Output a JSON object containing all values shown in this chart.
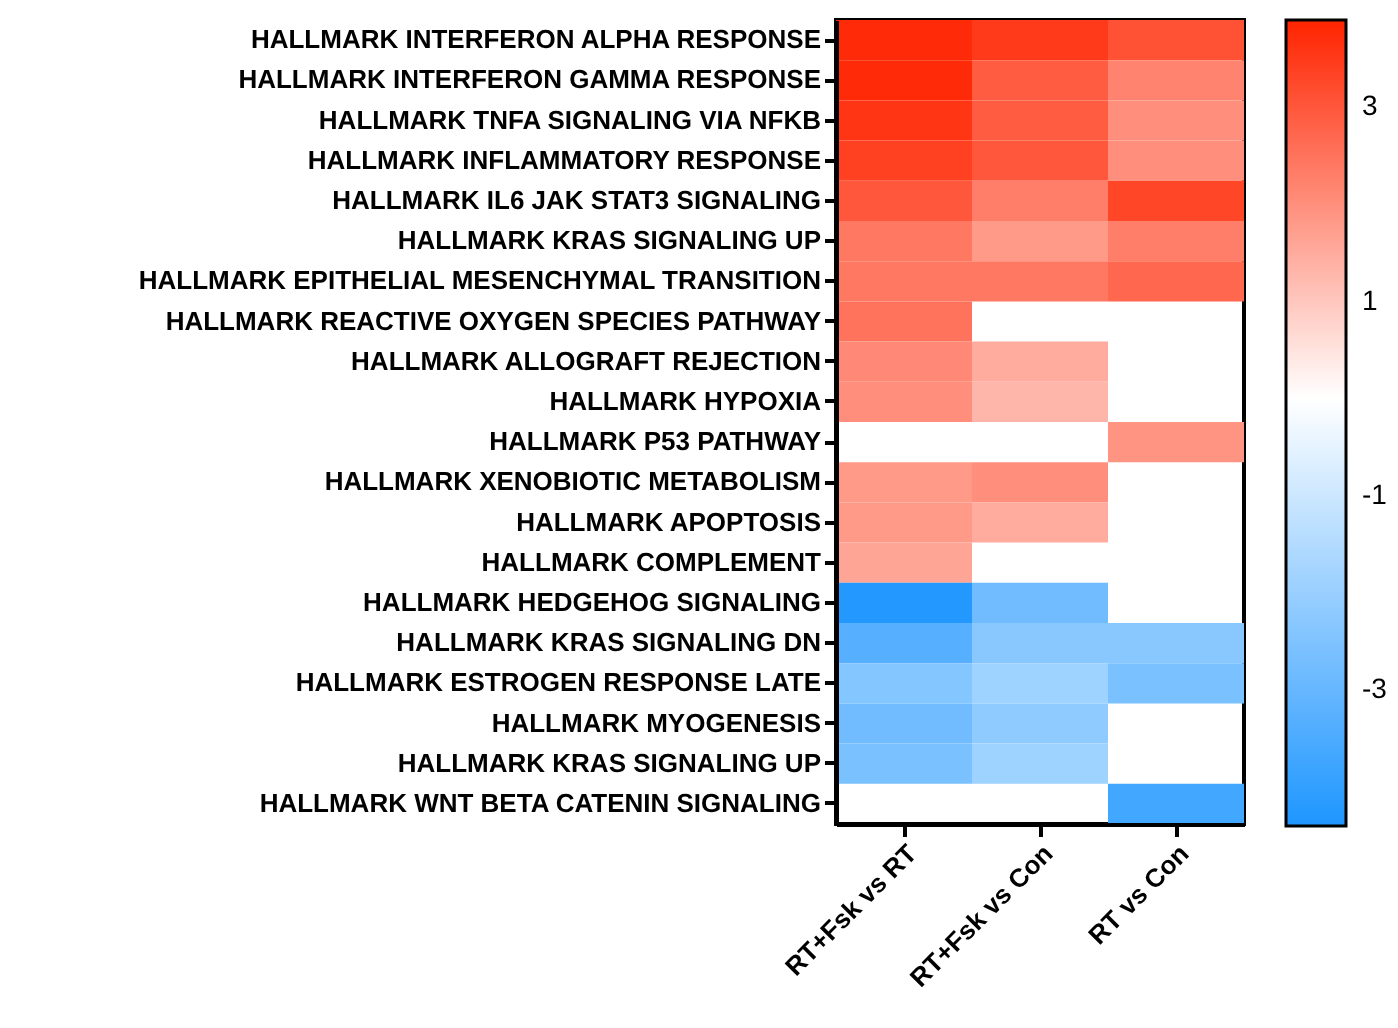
{
  "chart_data": {
    "type": "heatmap",
    "categories": [
      "RT+Fsk vs RT",
      "RT+Fsk vs Con",
      "RT vs Con"
    ],
    "y_categories": [
      "HALLMARK INTERFERON ALPHA RESPONSE",
      "HALLMARK INTERFERON GAMMA RESPONSE",
      "HALLMARK TNFA SIGNALING VIA NFKB",
      "HALLMARK INFLAMMATORY RESPONSE",
      "HALLMARK IL6 JAK STAT3 SIGNALING",
      "HALLMARK KRAS SIGNALING UP",
      "HALLMARK EPITHELIAL MESENCHYMAL TRANSITION",
      "HALLMARK REACTIVE OXYGEN SPECIES PATHWAY",
      "HALLMARK ALLOGRAFT REJECTION",
      "HALLMARK HYPOXIA",
      "HALLMARK P53 PATHWAY",
      "HALLMARK XENOBIOTIC METABOLISM",
      "HALLMARK APOPTOSIS",
      "HALLMARK COMPLEMENT",
      "HALLMARK HEDGEHOG SIGNALING",
      "HALLMARK KRAS SIGNALING DN",
      "HALLMARK ESTROGEN RESPONSE LATE",
      "HALLMARK MYOGENESIS",
      "HALLMARK KRAS SIGNALING UP",
      "HALLMARK WNT BETA CATENIN SIGNALING"
    ],
    "cells": [
      [
        3.8,
        3.5,
        3.1
      ],
      [
        3.8,
        2.9,
        2.2
      ],
      [
        3.6,
        2.9,
        2.0
      ],
      [
        3.4,
        3.0,
        2.0
      ],
      [
        3.0,
        2.3,
        3.3
      ],
      [
        2.4,
        1.8,
        2.3
      ],
      [
        2.4,
        2.4,
        2.7
      ],
      [
        2.5,
        null,
        null
      ],
      [
        2.1,
        1.5,
        null
      ],
      [
        2.0,
        1.3,
        null
      ],
      [
        null,
        null,
        1.9
      ],
      [
        1.8,
        2.0,
        null
      ],
      [
        1.8,
        1.5,
        null
      ],
      [
        1.6,
        null,
        null
      ],
      [
        -4.3,
        -2.8,
        null
      ],
      [
        -3.3,
        -2.3,
        -2.3
      ],
      [
        -2.4,
        -1.9,
        -2.6
      ],
      [
        -2.8,
        -2.2,
        null
      ],
      [
        -2.6,
        -1.9,
        null
      ],
      [
        null,
        null,
        -3.7
      ]
    ],
    "clim": [
      -4.4,
      3.9
    ],
    "cticks": [
      3,
      1,
      -1,
      -3
    ]
  }
}
